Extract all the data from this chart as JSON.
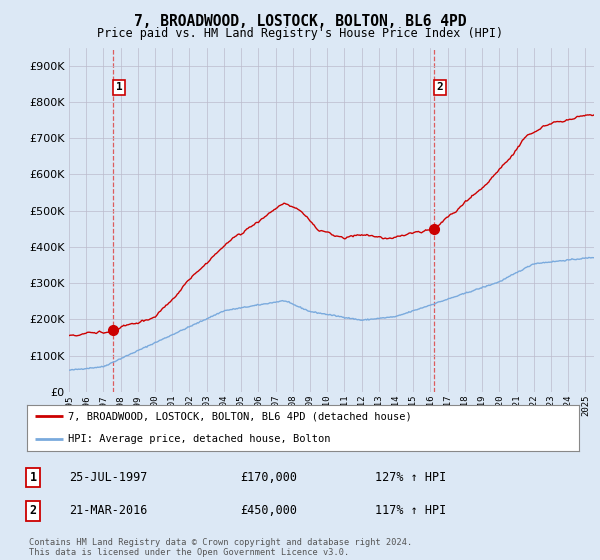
{
  "title": "7, BROADWOOD, LOSTOCK, BOLTON, BL6 4PD",
  "subtitle": "Price paid vs. HM Land Registry's House Price Index (HPI)",
  "legend_line1": "7, BROADWOOD, LOSTOCK, BOLTON, BL6 4PD (detached house)",
  "legend_line2": "HPI: Average price, detached house, Bolton",
  "sale1_date": "25-JUL-1997",
  "sale1_price": 170000,
  "sale1_hpi": "127% ↑ HPI",
  "sale2_date": "21-MAR-2016",
  "sale2_price": 450000,
  "sale2_hpi": "117% ↑ HPI",
  "footer": "Contains HM Land Registry data © Crown copyright and database right 2024.\nThis data is licensed under the Open Government Licence v3.0.",
  "red_line_color": "#cc0000",
  "blue_line_color": "#7aaadd",
  "dashed_line_color": "#dd4444",
  "background_color": "#dce8f5",
  "plot_bg_color": "#dce8f5",
  "ylim": [
    0,
    950000
  ],
  "yticks": [
    0,
    100000,
    200000,
    300000,
    400000,
    500000,
    600000,
    700000,
    800000,
    900000
  ],
  "sale1_year": 1997.57,
  "sale2_year": 2016.22
}
